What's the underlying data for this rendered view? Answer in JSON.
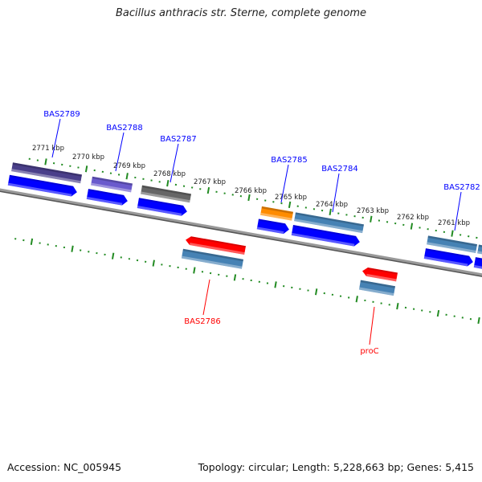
{
  "title": "Bacillus anthracis str. Sterne, complete genome",
  "footer": {
    "accession": "Accession: NC_005945",
    "topology": "Topology: circular; Length: 5,228,663 bp; Genes: 5,415"
  },
  "tick_labels": [
    "2771 kbp",
    "2770 kbp",
    "2769 kbp",
    "2768 kbp",
    "2767 kbp",
    "2766 kbp",
    "2765 kbp",
    "2764 kbp",
    "2763 kbp",
    "2762 kbp",
    "2761 kbp"
  ],
  "genes": [
    {
      "label": "BAS2789",
      "strand": "forward",
      "color": "#4a3f8a",
      "label_color": "#0000ff"
    },
    {
      "label": "BAS2788",
      "strand": "forward",
      "color": "#6a5acd",
      "label_color": "#0000ff"
    },
    {
      "label": "BAS2787",
      "strand": "forward",
      "color": "#666666",
      "label_color": "#0000ff"
    },
    {
      "label": "BAS2786",
      "strand": "reverse",
      "color": "#4682b4",
      "label_color": "#ff0000"
    },
    {
      "label": "BAS2785",
      "strand": "forward",
      "color": "#ff8c00",
      "label_color": "#0000ff"
    },
    {
      "label": "BAS2784",
      "strand": "forward",
      "color": "#4682b4",
      "label_color": "#0000ff"
    },
    {
      "label": "proC",
      "strand": "reverse",
      "color": "#4682b4",
      "label_color": "#ff0000"
    },
    {
      "label": "BAS2782",
      "strand": "forward",
      "color": "#4682b4",
      "label_color": "#0000ff"
    }
  ],
  "colors": {
    "forward_cds": "#0000ff",
    "reverse_cds": "#ff0000",
    "ticks": "#228b22",
    "backbone": "#777777"
  }
}
